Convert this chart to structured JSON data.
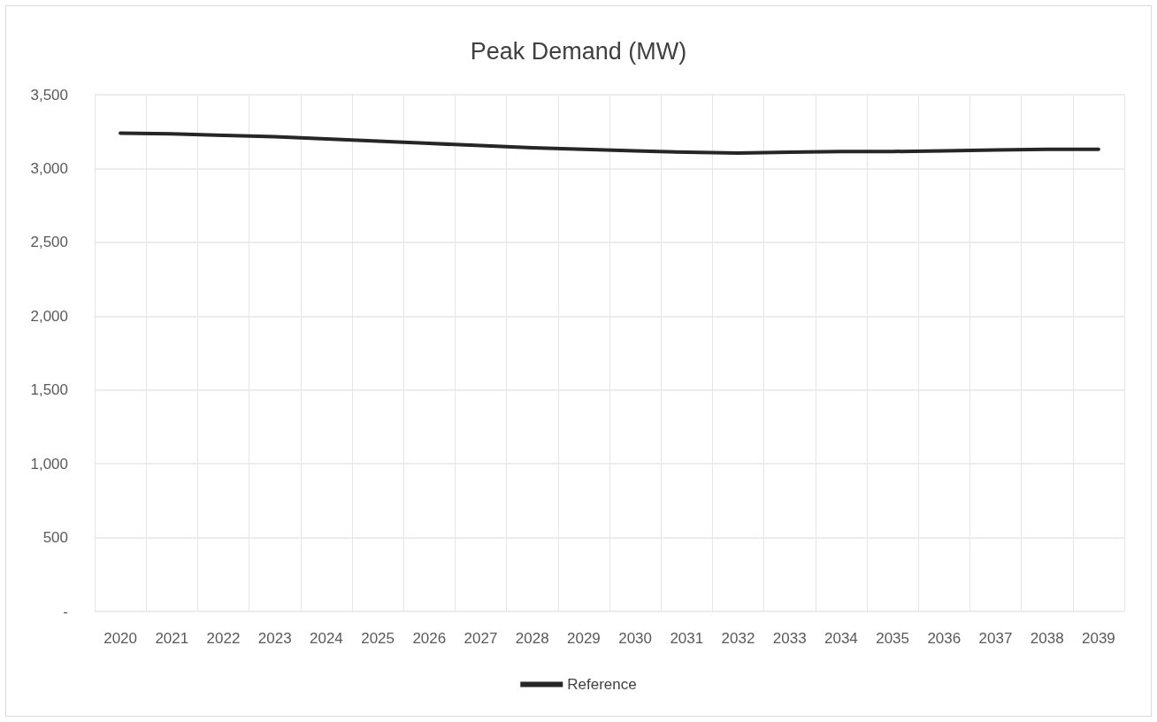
{
  "chart_data": {
    "type": "line",
    "title": "Peak Demand (MW)",
    "categories": [
      "2020",
      "2021",
      "2022",
      "2023",
      "2024",
      "2025",
      "2026",
      "2027",
      "2028",
      "2029",
      "2030",
      "2031",
      "2032",
      "2033",
      "2034",
      "2035",
      "2036",
      "2037",
      "2038",
      "2039"
    ],
    "series": [
      {
        "name": "Reference",
        "color": "#262626",
        "values": [
          3240,
          3235,
          3225,
          3215,
          3200,
          3185,
          3170,
          3155,
          3140,
          3130,
          3120,
          3110,
          3105,
          3110,
          3115,
          3115,
          3120,
          3125,
          3130,
          3130
        ]
      }
    ],
    "ylim": [
      0,
      3500
    ],
    "yticks": [
      {
        "value": 0,
        "label": "-"
      },
      {
        "value": 500,
        "label": "500"
      },
      {
        "value": 1000,
        "label": "1,000"
      },
      {
        "value": 1500,
        "label": "1,500"
      },
      {
        "value": 2000,
        "label": "2,000"
      },
      {
        "value": 2500,
        "label": "2,500"
      },
      {
        "value": 3000,
        "label": "3,000"
      },
      {
        "value": 3500,
        "label": "3,500"
      }
    ],
    "grid": true,
    "legend": "bottom",
    "marker": "none",
    "line_style": "solid"
  }
}
